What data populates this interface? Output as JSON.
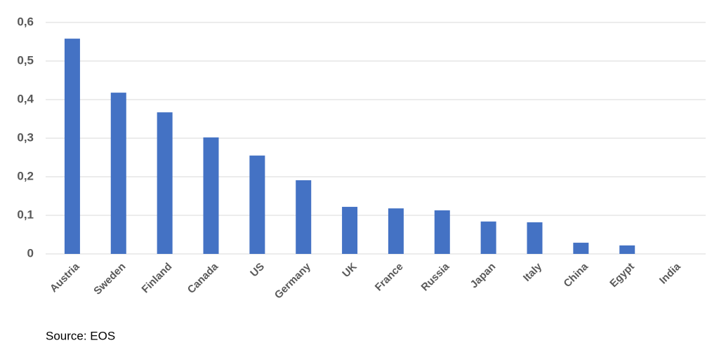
{
  "chart_data": {
    "type": "bar",
    "categories": [
      "Austria",
      "Sweden",
      "Finland",
      "Canada",
      "US",
      "Germany",
      "UK",
      "France",
      "Russia",
      "Japan",
      "Italy",
      "China",
      "Egypt",
      "India"
    ],
    "values": [
      0.558,
      0.418,
      0.367,
      0.302,
      0.255,
      0.191,
      0.122,
      0.118,
      0.113,
      0.084,
      0.082,
      0.029,
      0.022,
      0
    ],
    "color": "#4472c4",
    "ylim": [
      0,
      0.6
    ],
    "yticks": [
      0,
      {
        "value": 0.1,
        "label": "0,1"
      },
      {
        "value": 0.2,
        "label": "0,2"
      },
      {
        "value": 0.3,
        "label": "0,3"
      },
      {
        "value": 0.4,
        "label": "0,4"
      },
      {
        "value": 0.5,
        "label": "0,5"
      },
      {
        "value": 0.6,
        "label": "0,6"
      }
    ],
    "grid": true,
    "source": "Source: EOS"
  }
}
